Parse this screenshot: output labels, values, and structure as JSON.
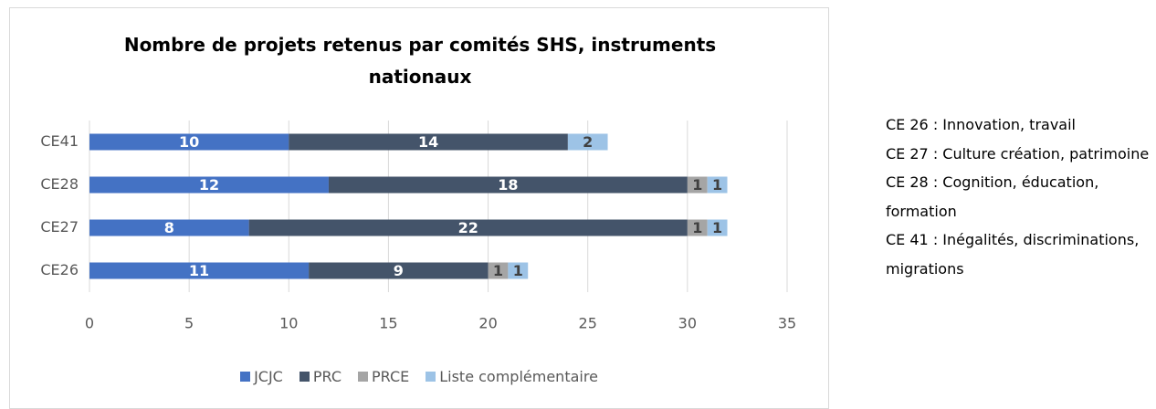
{
  "chart_data": {
    "type": "stacked-bar-horizontal",
    "title": "Nombre de projets retenus par comités SHS, instruments nationaux",
    "categories": [
      "CE26",
      "CE27",
      "CE28",
      "CE41"
    ],
    "series": [
      {
        "name": "JCJC",
        "color": "#4472c4",
        "label_color": "#ffffff",
        "values": [
          11,
          8,
          12,
          10
        ]
      },
      {
        "name": "PRC",
        "color": "#44546a",
        "label_color": "#ffffff",
        "values": [
          9,
          22,
          18,
          14
        ]
      },
      {
        "name": "PRCE",
        "color": "#a5a5a5",
        "label_color": "#404040",
        "values": [
          1,
          1,
          1,
          null
        ]
      },
      {
        "name": "Liste complémentaire",
        "color": "#9dc3e6",
        "label_color": "#404040",
        "values": [
          1,
          1,
          1,
          2
        ]
      }
    ],
    "xlim": [
      0,
      35
    ],
    "xticks": [
      0,
      5,
      10,
      15,
      20,
      25,
      30,
      35
    ],
    "grid": true,
    "legend": "bottom"
  },
  "notes": [
    "CE 26 : Innovation, travail",
    "CE 27 : Culture création, patrimoine",
    "CE 28 : Cognition, éducation, formation",
    "CE 41 : Inégalités, discriminations, migrations"
  ]
}
